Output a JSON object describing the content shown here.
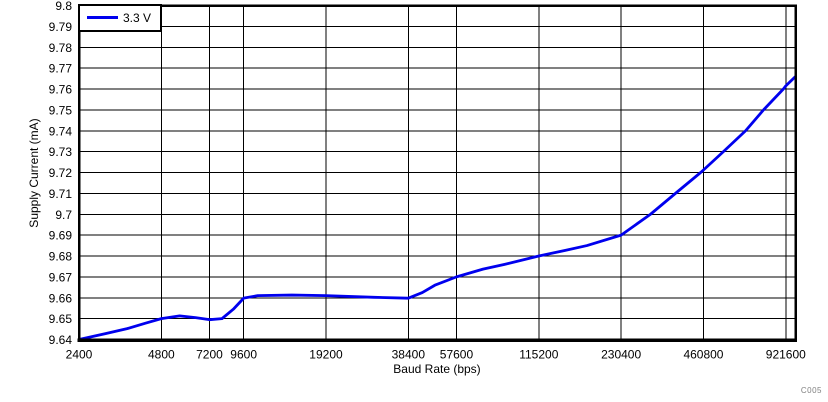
{
  "chart_data": {
    "type": "line",
    "title": "",
    "xlabel": "Baud Rate (bps)",
    "ylabel": "Supply Current (mA)",
    "annotation": "C005",
    "x_scale": "log",
    "xlim": [
      2400,
      1000000
    ],
    "ylim": [
      9.64,
      9.8
    ],
    "x_ticks": [
      2400,
      4800,
      7200,
      9600,
      19200,
      38400,
      57600,
      115200,
      230400,
      460800,
      921600
    ],
    "y_ticks": [
      9.8,
      9.79,
      9.78,
      9.77,
      9.76,
      9.75,
      9.74,
      9.73,
      9.72,
      9.71,
      9.7,
      9.69,
      9.68,
      9.67,
      9.66,
      9.65,
      9.64
    ],
    "grid": true,
    "legend": {
      "position": "top-left",
      "entries": [
        {
          "label": "3.3 V",
          "color": "#0000EE"
        }
      ]
    },
    "series": [
      {
        "name": "3.3 V",
        "color": "#0000EE",
        "points": [
          [
            2400,
            9.64
          ],
          [
            3000,
            9.6428
          ],
          [
            3600,
            9.6452
          ],
          [
            4200,
            9.6478
          ],
          [
            4800,
            9.65
          ],
          [
            5600,
            9.6513
          ],
          [
            6400,
            9.6505
          ],
          [
            7200,
            9.6495
          ],
          [
            8000,
            9.65
          ],
          [
            8800,
            9.6545
          ],
          [
            9400,
            9.6585
          ],
          [
            9600,
            9.6598
          ],
          [
            10800,
            9.661
          ],
          [
            14400,
            9.6613
          ],
          [
            19200,
            9.661
          ],
          [
            28800,
            9.6602
          ],
          [
            38400,
            9.6598
          ],
          [
            43200,
            9.6625
          ],
          [
            48000,
            9.666
          ],
          [
            57600,
            9.67
          ],
          [
            72000,
            9.6737
          ],
          [
            86400,
            9.676
          ],
          [
            115200,
            9.68
          ],
          [
            144000,
            9.6827
          ],
          [
            172800,
            9.685
          ],
          [
            230400,
            9.69
          ],
          [
            295000,
            9.7
          ],
          [
            364000,
            9.71
          ],
          [
            450000,
            9.72
          ],
          [
            460800,
            9.7212
          ],
          [
            545000,
            9.73
          ],
          [
            657000,
            9.74
          ],
          [
            764000,
            9.75
          ],
          [
            903000,
            9.76
          ],
          [
            921600,
            9.7615
          ],
          [
            1000000,
            9.766
          ]
        ]
      }
    ],
    "colors": {
      "grid": "#000000",
      "border": "#000000",
      "text": "#000000",
      "annotation": "#808080",
      "background": "#ffffff"
    }
  }
}
